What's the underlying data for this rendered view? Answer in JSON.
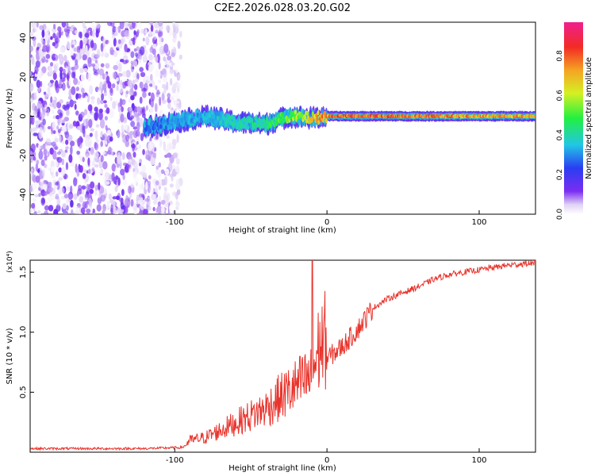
{
  "title": "C2E2.2026.028.03.20.G02",
  "chart_data": [
    {
      "type": "heatmap",
      "xlabel": "Height of straight line (km)",
      "ylabel": "Frequency (Hz)",
      "xlim": [
        -195,
        137
      ],
      "ylim": [
        -50,
        48
      ],
      "xticks": [
        -100,
        0,
        100
      ],
      "yticks": [
        -40,
        -20,
        0,
        20,
        40
      ],
      "colorbar": {
        "label": "Normalized spectral amplitude",
        "range": [
          0,
          0.97
        ],
        "ticks": [
          0.0,
          0.2,
          0.4,
          0.6,
          0.8
        ],
        "colormap": "rainbow (white-violet-blue-cyan-green-yellow-orange-red-magenta)"
      },
      "features": {
        "noise_band": {
          "x_range": [
            -195,
            -96
          ],
          "freq_range": [
            -50,
            48
          ],
          "amplitude": [
            0.0,
            0.15
          ]
        },
        "signal_track": [
          {
            "x": -120,
            "freq": -6,
            "amplitude": 0.3
          },
          {
            "x": -100,
            "freq": -3,
            "amplitude": 0.35
          },
          {
            "x": -80,
            "freq": 0,
            "amplitude": 0.4
          },
          {
            "x": -60,
            "freq": -3,
            "amplitude": 0.45
          },
          {
            "x": -40,
            "freq": -4,
            "amplitude": 0.5
          },
          {
            "x": -25,
            "freq": 0,
            "amplitude": 0.6
          },
          {
            "x": -10,
            "freq": -1,
            "amplitude": 0.75
          },
          {
            "x": 0,
            "freq": 0,
            "amplitude": 0.9
          },
          {
            "x": 20,
            "freq": 0,
            "amplitude": 0.95
          },
          {
            "x": 60,
            "freq": 0,
            "amplitude": 0.9
          },
          {
            "x": 100,
            "freq": 0,
            "amplitude": 0.85
          },
          {
            "x": 137,
            "freq": 0,
            "amplitude": 0.85
          }
        ]
      },
      "grid": false
    },
    {
      "type": "line",
      "xlabel": "Height of straight line (km)",
      "ylabel": "SNR (10 * v/v)",
      "y_multiplier": "(x10⁴)",
      "xlim": [
        -195,
        137
      ],
      "ylim": [
        0,
        1.6
      ],
      "xticks": [
        -100,
        0,
        100
      ],
      "yticks": [
        0.5,
        1.0,
        1.5
      ],
      "series": [
        {
          "color": "#e8342c",
          "x": [
            -195,
            -160,
            -120,
            -95,
            -90,
            -80,
            -70,
            -60,
            -50,
            -40,
            -30,
            -20,
            -12,
            -10,
            -8,
            -5,
            0,
            10,
            20,
            30,
            40,
            50,
            60,
            70,
            80,
            90,
            100,
            110,
            120,
            130,
            137
          ],
          "y": [
            0.03,
            0.03,
            0.03,
            0.04,
            0.08,
            0.1,
            0.15,
            0.2,
            0.25,
            0.3,
            0.38,
            0.45,
            0.5,
            1.6,
            0.6,
            0.72,
            0.78,
            0.88,
            1.02,
            1.2,
            1.28,
            1.33,
            1.38,
            1.44,
            1.48,
            1.5,
            1.52,
            1.54,
            1.56,
            1.57,
            1.58
          ]
        }
      ],
      "grid": false
    }
  ]
}
